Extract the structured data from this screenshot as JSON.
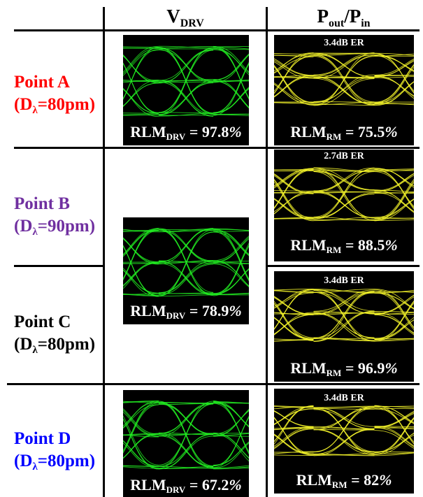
{
  "header": {
    "col1": {
      "main": "V",
      "sub": "DRV"
    },
    "col2": {
      "p1": "P",
      "s1": "out",
      "slash": "/P",
      "s2": "in"
    }
  },
  "rows": [
    {
      "name": "Point A",
      "cond_pre": "(D",
      "cond_sub": "λ",
      "cond_post": "=80pm)",
      "color": "#ff0000"
    },
    {
      "name": "Point B",
      "cond_pre": "(D",
      "cond_sub": "λ",
      "cond_post": "=90pm)",
      "color": "#7030a0"
    },
    {
      "name": "Point C",
      "cond_pre": "(D",
      "cond_sub": "λ",
      "cond_post": "=80pm)",
      "color": "#000000"
    },
    {
      "name": "Point D",
      "cond_pre": "(D",
      "cond_sub": "λ",
      "cond_post": "=80pm)",
      "color": "#0000ff"
    }
  ],
  "drv_eyes": [
    {
      "label": "RLM",
      "sub": "DRV",
      "value": " = 97.8",
      "pct": "%"
    },
    {
      "label": "RLM",
      "sub": "DRV",
      "value": " = 78.9",
      "pct": "%"
    },
    {
      "label": "RLM",
      "sub": "DRV",
      "value": " = 67.2",
      "pct": "%"
    }
  ],
  "rm_eyes": [
    {
      "er": "3.4dB ER",
      "label": "RLM",
      "sub": "RM",
      "value": " = 75.5",
      "pct": "%"
    },
    {
      "er": "2.7dB ER",
      "label": "RLM",
      "sub": "RM",
      "value": " = 88.5",
      "pct": "%"
    },
    {
      "er": "3.4dB ER",
      "label": "RLM",
      "sub": "RM",
      "value": " = 96.9",
      "pct": "%"
    },
    {
      "er": "3.4dB ER",
      "label": "RLM",
      "sub": "RM",
      "value": " = 82",
      "pct": "%"
    }
  ],
  "colors": {
    "drv_trace": "#22ee22",
    "rm_trace": "#f5f52a",
    "background": "#000000"
  }
}
